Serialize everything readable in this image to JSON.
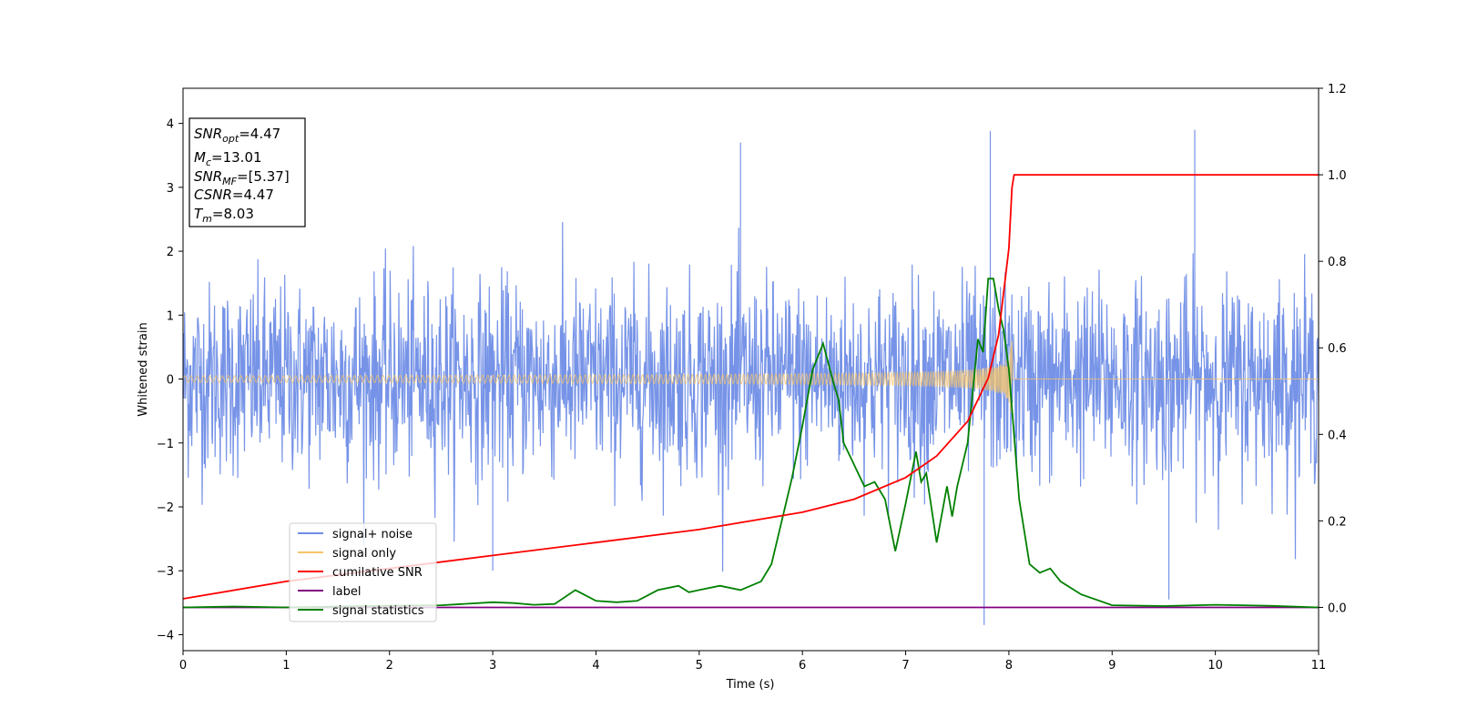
{
  "chart_data": {
    "type": "line",
    "xlabel": "Time (s)",
    "ylabel": "Whitened strain",
    "xlim": [
      0,
      11
    ],
    "ylim": [
      -4.25,
      4.55
    ],
    "ylim_right": [
      -0.1,
      1.2
    ],
    "x_ticks": [
      "0",
      "1",
      "2",
      "3",
      "4",
      "5",
      "6",
      "7",
      "8",
      "9",
      "10",
      "11"
    ],
    "y_ticks": [
      "−4",
      "−3",
      "−2",
      "−1",
      "0",
      "1",
      "2",
      "3",
      "4"
    ],
    "y_ticks_right": [
      "0.0",
      "0.2",
      "0.4",
      "0.6",
      "0.8",
      "1.0",
      "1.2"
    ],
    "grid": false,
    "legend_position": "lower-left",
    "colors": {
      "signal_noise": "#6f8de6",
      "signal_only": "#f5c46a",
      "cumulative_snr": "#ff0000",
      "label": "#800080",
      "signal_statistics": "#008000"
    },
    "series": [
      {
        "name": "signal+ noise",
        "axis": "left",
        "description": "whitened noise, std approx 0.75, spikes up to approx 3.9 near t=7.8 and t=9.8",
        "y_std": 0.75,
        "y_peak_max": 3.88,
        "y_peak_min": -3.85
      },
      {
        "name": "signal only",
        "axis": "left",
        "description": "chirp signal, amplitude growing until merger at t=8.03",
        "merger_time": 8.03,
        "peak_amplitude": 0.75
      },
      {
        "name": "cumilative SNR",
        "axis": "right",
        "x": [
          0,
          1,
          2,
          3,
          4,
          5,
          6,
          6.5,
          7,
          7.3,
          7.6,
          7.8,
          7.9,
          8.0,
          8.03,
          8.05,
          11
        ],
        "y": [
          0.02,
          0.06,
          0.09,
          0.12,
          0.15,
          0.18,
          0.22,
          0.25,
          0.3,
          0.35,
          0.43,
          0.53,
          0.63,
          0.83,
          0.97,
          1.0,
          1.0
        ]
      },
      {
        "name": "label",
        "axis": "right",
        "x": [
          0,
          11
        ],
        "y": [
          0.0,
          0.0
        ]
      },
      {
        "name": "signal statistics",
        "axis": "right",
        "x": [
          0,
          0.5,
          1,
          1.5,
          2,
          2.5,
          3,
          3.2,
          3.4,
          3.6,
          3.8,
          4.0,
          4.2,
          4.4,
          4.6,
          4.8,
          4.9,
          5.0,
          5.2,
          5.4,
          5.5,
          5.6,
          5.7,
          5.8,
          5.9,
          6.0,
          6.1,
          6.2,
          6.3,
          6.35,
          6.4,
          6.5,
          6.6,
          6.7,
          6.8,
          6.9,
          7.0,
          7.1,
          7.15,
          7.2,
          7.3,
          7.4,
          7.45,
          7.5,
          7.6,
          7.7,
          7.75,
          7.8,
          7.85,
          7.9,
          7.95,
          8.0,
          8.1,
          8.2,
          8.3,
          8.4,
          8.5,
          8.7,
          9.0,
          9.5,
          10,
          10.5,
          11
        ],
        "y": [
          0.0,
          0.002,
          0.0,
          0.002,
          0.004,
          0.005,
          0.012,
          0.01,
          0.006,
          0.008,
          0.04,
          0.015,
          0.012,
          0.015,
          0.04,
          0.05,
          0.035,
          0.04,
          0.05,
          0.04,
          0.05,
          0.06,
          0.1,
          0.2,
          0.3,
          0.42,
          0.55,
          0.61,
          0.52,
          0.48,
          0.38,
          0.33,
          0.28,
          0.29,
          0.25,
          0.13,
          0.24,
          0.36,
          0.29,
          0.31,
          0.15,
          0.28,
          0.21,
          0.28,
          0.38,
          0.62,
          0.59,
          0.76,
          0.76,
          0.69,
          0.64,
          0.55,
          0.25,
          0.1,
          0.08,
          0.09,
          0.06,
          0.03,
          0.005,
          0.003,
          0.006,
          0.004,
          0.0
        ]
      }
    ],
    "annotation": {
      "snr_opt_value": "=4.47",
      "mc_value": "=13.01",
      "snr_mf_value": "=[5.37]",
      "csnr_value": "=4.47",
      "tm_value": "=8.03"
    }
  }
}
